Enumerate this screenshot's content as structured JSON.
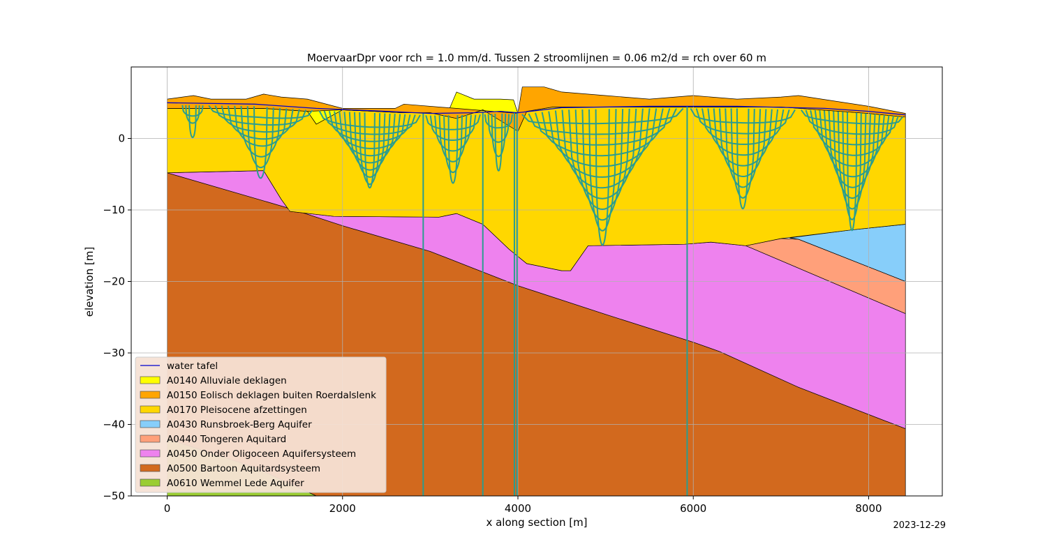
{
  "chart_data": {
    "type": "area",
    "title": "MoervaarDpr voor rch = 1.0 mm/d. Tussen 2 stroomlijnen = 0.06 m2/d = rch over 60 m",
    "xlabel": "x along section [m]",
    "ylabel": "elevation [m]",
    "xlim": [
      -410,
      8840
    ],
    "ylim": [
      -50,
      10
    ],
    "xticks": [
      0,
      2000,
      4000,
      6000,
      8000
    ],
    "yticks": [
      -50,
      -40,
      -30,
      -20,
      -10,
      0
    ],
    "grid": true,
    "legend_position": "lower-left",
    "date_stamp": "2023-12-29",
    "layers": [
      {
        "name": "A0610 Wemmel Lede Aquifer",
        "color": "#9acd32",
        "top": [
          [
            0,
            -42
          ],
          [
            1000,
            -46
          ],
          [
            1700,
            -50
          ],
          [
            8420,
            -50
          ]
        ],
        "bottom": [
          [
            0,
            -50
          ],
          [
            8420,
            -50
          ]
        ]
      },
      {
        "name": "A0500 Bartoon Aquitardsysteem",
        "color": "#d2691e",
        "top": [
          [
            0,
            -4.8
          ],
          [
            1400,
            -9.8
          ],
          [
            2000,
            -12.2
          ],
          [
            3000,
            -15.8
          ],
          [
            4000,
            -20.6
          ],
          [
            5000,
            -24.6
          ],
          [
            6000,
            -28.5
          ],
          [
            6300,
            -29.8
          ],
          [
            7200,
            -34.8
          ],
          [
            8420,
            -40.6
          ]
        ],
        "bottom": [
          [
            0,
            -42
          ],
          [
            1000,
            -46
          ],
          [
            1700,
            -50
          ],
          [
            8420,
            -50
          ]
        ]
      },
      {
        "name": "A0450 Onder Oligoceen Aquifersysteem",
        "color": "#ee82ee",
        "top": [
          [
            0,
            -4.8
          ],
          [
            1100,
            -4.5
          ],
          [
            1300,
            -8.5
          ],
          [
            1400,
            -10.2
          ],
          [
            1900,
            -10.9
          ],
          [
            3100,
            -11
          ],
          [
            3300,
            -10.5
          ],
          [
            3600,
            -12
          ],
          [
            3900,
            -15.5
          ],
          [
            4100,
            -17.5
          ],
          [
            4500,
            -18.5
          ],
          [
            4600,
            -18.5
          ],
          [
            4800,
            -15
          ],
          [
            5900,
            -14.8
          ],
          [
            6200,
            -14.5
          ],
          [
            6600,
            -15
          ],
          [
            8420,
            -24.5
          ]
        ],
        "bottom": [
          [
            0,
            -4.8
          ],
          [
            1400,
            -9.8
          ],
          [
            2000,
            -12.2
          ],
          [
            3000,
            -15.8
          ],
          [
            4000,
            -20.6
          ],
          [
            5000,
            -24.6
          ],
          [
            6000,
            -28.5
          ],
          [
            6300,
            -29.8
          ],
          [
            7200,
            -34.8
          ],
          [
            8420,
            -40.6
          ]
        ]
      },
      {
        "name": "A0440 Tongeren Aquitard",
        "color": "#ffa07a",
        "top": [
          [
            6600,
            -15
          ],
          [
            7000,
            -14
          ],
          [
            7200,
            -14.1
          ],
          [
            8420,
            -20
          ]
        ],
        "bottom": [
          [
            6600,
            -15
          ],
          [
            8420,
            -24.5
          ]
        ]
      },
      {
        "name": "A0430 Runsbroek-Berg Aquifer",
        "color": "#87cefa",
        "top": [
          [
            7100,
            -13.9
          ],
          [
            7800,
            -12.8
          ],
          [
            8420,
            -12
          ]
        ],
        "bottom": [
          [
            7100,
            -13.9
          ],
          [
            7200,
            -14.1
          ],
          [
            8420,
            -20
          ]
        ]
      },
      {
        "name": "A0170 Pleisocene afzettingen",
        "color": "#ffd700",
        "top": [
          [
            0,
            4.2
          ],
          [
            1100,
            4.2
          ],
          [
            1600,
            3.8
          ],
          [
            1700,
            2
          ],
          [
            2000,
            4
          ],
          [
            2700,
            3.6
          ],
          [
            3000,
            3.6
          ],
          [
            3300,
            2.8
          ],
          [
            3600,
            4
          ],
          [
            3900,
            2.5
          ],
          [
            4000,
            1
          ],
          [
            4100,
            3.8
          ],
          [
            4400,
            4.4
          ],
          [
            6000,
            4.4
          ],
          [
            7000,
            4.4
          ],
          [
            8000,
            3.5
          ],
          [
            8420,
            3
          ]
        ],
        "bottom": [
          [
            0,
            -4.8
          ],
          [
            1100,
            -4.5
          ],
          [
            1300,
            -8.5
          ],
          [
            1400,
            -10.2
          ],
          [
            1900,
            -10.9
          ],
          [
            3100,
            -11
          ],
          [
            3300,
            -10.5
          ],
          [
            3600,
            -12
          ],
          [
            3900,
            -15.5
          ],
          [
            4100,
            -17.5
          ],
          [
            4500,
            -18.5
          ],
          [
            4600,
            -18.5
          ],
          [
            4800,
            -15
          ],
          [
            5900,
            -14.8
          ],
          [
            6200,
            -14.5
          ],
          [
            6600,
            -15
          ],
          [
            7000,
            -14
          ],
          [
            7800,
            -12.8
          ],
          [
            8420,
            -12
          ]
        ]
      },
      {
        "name": "A0140 Alluviale deklagen",
        "color": "#ffff00",
        "top": [
          [
            1600,
            5.2
          ],
          [
            1800,
            4.6
          ],
          [
            2000,
            4.2
          ],
          [
            2600,
            4.2
          ],
          [
            2800,
            3.6
          ],
          [
            3200,
            3.6
          ],
          [
            3300,
            6.5
          ],
          [
            3500,
            5.5
          ],
          [
            3800,
            5.5
          ],
          [
            3950,
            5.4
          ],
          [
            4000,
            3.5
          ]
        ],
        "bottom": [
          [
            1600,
            3.8
          ],
          [
            1700,
            2
          ],
          [
            2000,
            4
          ],
          [
            2700,
            3.6
          ],
          [
            3000,
            3.6
          ],
          [
            3300,
            2.8
          ],
          [
            3600,
            4
          ],
          [
            3900,
            2.5
          ],
          [
            4000,
            1
          ]
        ]
      },
      {
        "name": "A0150 Eolisch deklagen buiten Roerdalslenk",
        "color": "#ffa500",
        "top": [
          [
            0,
            5.5
          ],
          [
            300,
            6
          ],
          [
            500,
            5.5
          ],
          [
            900,
            5.5
          ],
          [
            1100,
            6.2
          ],
          [
            1300,
            5.8
          ],
          [
            1600,
            5.5
          ],
          [
            2000,
            4.2
          ],
          [
            2600,
            4.2
          ],
          [
            2700,
            4.8
          ],
          [
            4000,
            3.5
          ],
          [
            4050,
            7.2
          ],
          [
            4300,
            7.2
          ],
          [
            4500,
            6.5
          ],
          [
            5000,
            6
          ],
          [
            5500,
            5.5
          ],
          [
            6000,
            6
          ],
          [
            6500,
            5.5
          ],
          [
            7000,
            5.8
          ],
          [
            7200,
            6
          ],
          [
            8000,
            4.5
          ],
          [
            8420,
            3.5
          ]
        ],
        "bottom": [
          [
            0,
            4.2
          ],
          [
            1100,
            4.2
          ],
          [
            1600,
            3.8
          ],
          [
            2000,
            4
          ],
          [
            2700,
            3.6
          ],
          [
            3000,
            3.6
          ],
          [
            3300,
            2.8
          ],
          [
            3600,
            4
          ],
          [
            4000,
            1
          ],
          [
            4100,
            3.8
          ],
          [
            4400,
            4.4
          ],
          [
            6000,
            4.4
          ],
          [
            7000,
            4.4
          ],
          [
            8000,
            3.5
          ],
          [
            8420,
            3
          ]
        ]
      }
    ],
    "water_table": {
      "name": "water tafel",
      "color": "#0000cd",
      "points": [
        [
          0,
          5
        ],
        [
          1000,
          4.8
        ],
        [
          1700,
          4.2
        ],
        [
          2500,
          3.8
        ],
        [
          3000,
          3.5
        ],
        [
          3500,
          3.6
        ],
        [
          3800,
          3.8
        ],
        [
          4000,
          3.6
        ],
        [
          4500,
          4.3
        ],
        [
          5500,
          4.5
        ],
        [
          6500,
          4.5
        ],
        [
          7500,
          4.2
        ],
        [
          8000,
          3.8
        ],
        [
          8420,
          3.3
        ]
      ]
    },
    "streamlines_color": "#2a9d8f",
    "vertical_streamlines_x": [
      2920,
      3600,
      3960,
      3990,
      5930
    ],
    "streamline_basins": [
      {
        "x1": 150,
        "x2": 430,
        "depth": [
          1.5,
          2.5,
          4.5
        ]
      },
      {
        "x1": 430,
        "x2": 1700,
        "depth": [
          1.5,
          2.5,
          3.5,
          4.5,
          5.5,
          7,
          8.5,
          10
        ]
      },
      {
        "x1": 1700,
        "x2": 2920,
        "depth": [
          2,
          3,
          4,
          5,
          6,
          7,
          8,
          9,
          10,
          10.5
        ]
      },
      {
        "x1": 2920,
        "x2": 3600,
        "depth": [
          2,
          3.5,
          5,
          6.5,
          8,
          9.5
        ]
      },
      {
        "x1": 3600,
        "x2": 3960,
        "depth": [
          2,
          4,
          6,
          8
        ]
      },
      {
        "x1": 4000,
        "x2": 5930,
        "depth": [
          2,
          3.5,
          5,
          6.5,
          8,
          9.5,
          11,
          12.5,
          14,
          15.5,
          17,
          19
        ]
      },
      {
        "x1": 5930,
        "x2": 7200,
        "depth": [
          2,
          3.5,
          5,
          6.5,
          8,
          9.5,
          11,
          12.5,
          14
        ]
      },
      {
        "x1": 7200,
        "x2": 8420,
        "depth": [
          1.5,
          3,
          4.5,
          6,
          7.5,
          9,
          10.5,
          12,
          13.5,
          15,
          16.5
        ]
      }
    ],
    "legend_entries": [
      {
        "label": "water tafel",
        "kind": "line",
        "color": "#0000cd"
      },
      {
        "label": "A0140 Alluviale deklagen",
        "kind": "patch",
        "color": "#ffff00"
      },
      {
        "label": "A0150 Eolisch deklagen buiten Roerdalslenk",
        "kind": "patch",
        "color": "#ffa500"
      },
      {
        "label": "A0170 Pleisocene afzettingen",
        "kind": "patch",
        "color": "#ffd700"
      },
      {
        "label": "A0430 Runsbroek-Berg Aquifer",
        "kind": "patch",
        "color": "#87cefa"
      },
      {
        "label": "A0440 Tongeren Aquitard",
        "kind": "patch",
        "color": "#ffa07a"
      },
      {
        "label": "A0450 Onder Oligoceen Aquifersysteem",
        "kind": "patch",
        "color": "#ee82ee"
      },
      {
        "label": "A0500 Bartoon Aquitardsysteem",
        "kind": "patch",
        "color": "#d2691e"
      },
      {
        "label": "A0610 Wemmel Lede Aquifer",
        "kind": "patch",
        "color": "#9acd32"
      }
    ]
  }
}
